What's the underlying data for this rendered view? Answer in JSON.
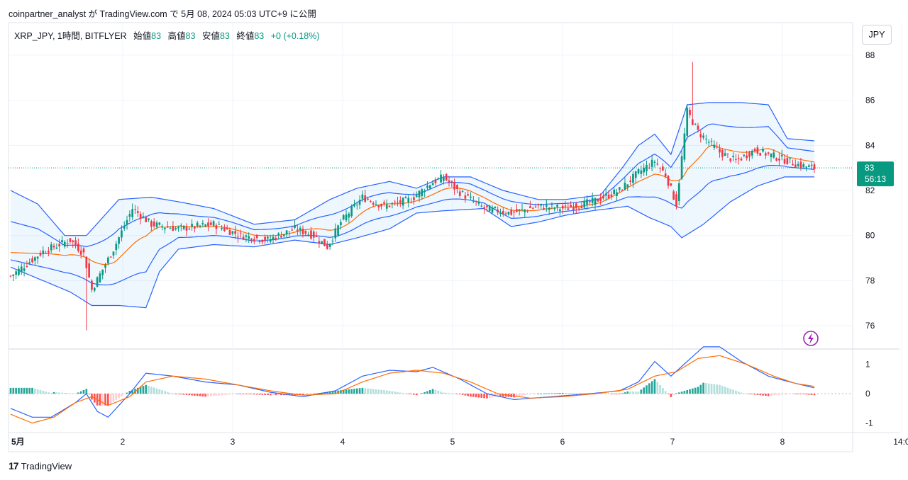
{
  "header": {
    "publish_line": "coinpartner_analyst が TradingView.com で 5月 08, 2024 05:03 UTC+9 に公開"
  },
  "legend": {
    "symbol": "XRP_JPY, 1時間, BITFLYER",
    "open_label": "始値",
    "open_value": "83",
    "high_label": "高値",
    "high_value": "83",
    "low_label": "安値",
    "low_value": "83",
    "close_label": "終値",
    "close_value": "83",
    "change": "+0 (+0.18%)"
  },
  "currency_button": "JPY",
  "price_tag": {
    "price": "83",
    "countdown": "56:13"
  },
  "footer": {
    "brand": "TradingView",
    "logo_glyph": "17"
  },
  "colors": {
    "up": "#089981",
    "down": "#f23645",
    "bb_band": "#2962ff",
    "bb_basis": "#ff6d00",
    "macd_line": "#2962ff",
    "signal_line": "#ff6d00",
    "hist_up_strong": "#26a69a",
    "hist_up_weak": "#b2dfdb",
    "hist_down_strong": "#ff5252",
    "hist_down_weak": "#ffcdd2"
  },
  "chart_data": [
    {
      "type": "candlestick",
      "title": "XRP_JPY, 1時間, BITFLYER",
      "y_ticks": [
        "76",
        "78",
        "80",
        "82",
        "84",
        "86",
        "88"
      ],
      "ylim": [
        75,
        88.5
      ],
      "x_ticks": [
        "5月",
        "2",
        "3",
        "4",
        "5",
        "6",
        "7",
        "8",
        "14:0"
      ],
      "indicators": [
        "Bollinger Bands",
        "MACD"
      ],
      "last_price": 83,
      "close_anchors": [
        [
          0,
          78.2
        ],
        [
          12,
          79.3
        ],
        [
          22,
          79.8
        ],
        [
          27,
          79.2
        ],
        [
          30,
          77.6
        ],
        [
          34,
          78.5
        ],
        [
          38,
          79.4
        ],
        [
          45,
          81.2
        ],
        [
          52,
          80.5
        ],
        [
          62,
          80.3
        ],
        [
          75,
          80.5
        ],
        [
          85,
          80.0
        ],
        [
          95,
          79.8
        ],
        [
          105,
          80.3
        ],
        [
          112,
          80.0
        ],
        [
          117,
          79.5
        ],
        [
          122,
          80.6
        ],
        [
          130,
          81.7
        ],
        [
          138,
          81.3
        ],
        [
          148,
          81.6
        ],
        [
          155,
          82.3
        ],
        [
          160,
          82.6
        ],
        [
          165,
          82.0
        ],
        [
          175,
          81.2
        ],
        [
          185,
          81.0
        ],
        [
          195,
          81.3
        ],
        [
          205,
          81.2
        ],
        [
          215,
          81.5
        ],
        [
          225,
          82.0
        ],
        [
          232,
          82.8
        ],
        [
          238,
          83.3
        ],
        [
          242,
          82.7
        ],
        [
          246,
          81.4
        ],
        [
          250,
          85.5
        ],
        [
          254,
          84.6
        ],
        [
          262,
          83.7
        ],
        [
          268,
          83.3
        ],
        [
          275,
          83.8
        ],
        [
          285,
          83.4
        ],
        [
          292,
          83.1
        ],
        [
          297,
          83.0
        ]
      ],
      "bb_lower_anchors": [
        [
          0,
          78.6
        ],
        [
          12,
          78.0
        ],
        [
          22,
          77.5
        ],
        [
          30,
          76.9
        ],
        [
          40,
          76.9
        ],
        [
          50,
          76.8
        ],
        [
          55,
          78.4
        ],
        [
          62,
          79.4
        ],
        [
          75,
          79.6
        ],
        [
          90,
          79.5
        ],
        [
          105,
          79.8
        ],
        [
          118,
          79.6
        ],
        [
          128,
          79.9
        ],
        [
          140,
          80.3
        ],
        [
          150,
          81.0
        ],
        [
          160,
          81.1
        ],
        [
          175,
          81.2
        ],
        [
          185,
          80.4
        ],
        [
          195,
          80.6
        ],
        [
          205,
          80.9
        ],
        [
          215,
          81.1
        ],
        [
          228,
          81.3
        ],
        [
          236,
          80.8
        ],
        [
          244,
          80.4
        ],
        [
          248,
          79.9
        ],
        [
          256,
          80.5
        ],
        [
          266,
          81.5
        ],
        [
          276,
          82.2
        ],
        [
          286,
          82.6
        ],
        [
          297,
          82.6
        ]
      ],
      "bb_upper_anchors": [
        [
          0,
          82.0
        ],
        [
          10,
          81.4
        ],
        [
          20,
          80.0
        ],
        [
          28,
          80.0
        ],
        [
          40,
          81.6
        ],
        [
          52,
          81.7
        ],
        [
          62,
          81.5
        ],
        [
          75,
          81.2
        ],
        [
          90,
          80.5
        ],
        [
          105,
          80.7
        ],
        [
          118,
          81.6
        ],
        [
          128,
          82.1
        ],
        [
          140,
          82.4
        ],
        [
          150,
          82.1
        ],
        [
          160,
          82.6
        ],
        [
          170,
          82.6
        ],
        [
          182,
          82.0
        ],
        [
          195,
          81.6
        ],
        [
          205,
          81.6
        ],
        [
          218,
          81.8
        ],
        [
          226,
          83.0
        ],
        [
          232,
          84.0
        ],
        [
          238,
          84.5
        ],
        [
          244,
          83.6
        ],
        [
          250,
          85.8
        ],
        [
          258,
          85.9
        ],
        [
          270,
          85.9
        ],
        [
          280,
          85.8
        ],
        [
          287,
          84.3
        ],
        [
          297,
          84.2
        ]
      ],
      "macd_ylim": [
        -1.3,
        1.5
      ],
      "macd_y_ticks": [
        "1",
        "0",
        "-1"
      ],
      "macd_anchors": [
        [
          0,
          -0.5
        ],
        [
          8,
          -0.8
        ],
        [
          15,
          -0.8
        ],
        [
          24,
          -0.3
        ],
        [
          28,
          0.0
        ],
        [
          32,
          -0.6
        ],
        [
          36,
          -0.8
        ],
        [
          44,
          0.0
        ],
        [
          50,
          0.7
        ],
        [
          60,
          0.6
        ],
        [
          72,
          0.4
        ],
        [
          84,
          0.3
        ],
        [
          96,
          0.05
        ],
        [
          108,
          -0.1
        ],
        [
          120,
          0.1
        ],
        [
          130,
          0.6
        ],
        [
          140,
          0.8
        ],
        [
          150,
          0.75
        ],
        [
          156,
          0.9
        ],
        [
          166,
          0.5
        ],
        [
          176,
          0.0
        ],
        [
          186,
          -0.2
        ],
        [
          200,
          -0.1
        ],
        [
          214,
          0.0
        ],
        [
          225,
          0.1
        ],
        [
          232,
          0.4
        ],
        [
          238,
          1.1
        ],
        [
          244,
          0.6
        ],
        [
          250,
          1.1
        ],
        [
          256,
          1.6
        ],
        [
          262,
          1.6
        ],
        [
          270,
          1.1
        ],
        [
          280,
          0.6
        ],
        [
          288,
          0.4
        ],
        [
          297,
          0.2
        ]
      ],
      "signal_anchors": [
        [
          0,
          -0.7
        ],
        [
          8,
          -1.0
        ],
        [
          16,
          -0.8
        ],
        [
          24,
          -0.3
        ],
        [
          30,
          -0.1
        ],
        [
          36,
          -0.4
        ],
        [
          44,
          -0.1
        ],
        [
          50,
          0.4
        ],
        [
          60,
          0.6
        ],
        [
          72,
          0.5
        ],
        [
          84,
          0.3
        ],
        [
          96,
          0.1
        ],
        [
          108,
          -0.05
        ],
        [
          120,
          0.0
        ],
        [
          130,
          0.4
        ],
        [
          140,
          0.7
        ],
        [
          150,
          0.8
        ],
        [
          160,
          0.7
        ],
        [
          170,
          0.4
        ],
        [
          180,
          0.0
        ],
        [
          192,
          -0.15
        ],
        [
          204,
          -0.1
        ],
        [
          216,
          0.0
        ],
        [
          228,
          0.15
        ],
        [
          238,
          0.6
        ],
        [
          246,
          0.75
        ],
        [
          254,
          1.2
        ],
        [
          262,
          1.3
        ],
        [
          272,
          1.0
        ],
        [
          282,
          0.6
        ],
        [
          290,
          0.35
        ],
        [
          297,
          0.25
        ]
      ]
    }
  ]
}
